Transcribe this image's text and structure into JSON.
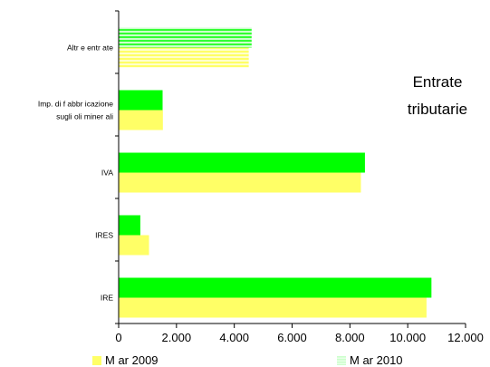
{
  "chart_data": {
    "type": "bar",
    "orientation": "horizontal",
    "title_lines": [
      "Entrate",
      "tributarie"
    ],
    "categories": [
      "Altre entrate",
      "Imp. di fabbricazione sugli oli minerali",
      "IVA",
      "IRES",
      "IRE"
    ],
    "category_label_lines": [
      [
        "Altr e entr ate"
      ],
      [
        "Imp. di f abbr icazione",
        "sugli oli miner ali"
      ],
      [
        "IVA"
      ],
      [
        "IRES"
      ],
      [
        "IRE"
      ]
    ],
    "series": [
      {
        "name": "Mar 2010",
        "label": "M ar 2010",
        "values": [
          4600,
          1520,
          8520,
          750,
          10820
        ]
      },
      {
        "name": "Mar 2009",
        "label": "M ar 2009",
        "values": [
          4500,
          1530,
          8380,
          1050,
          10650
        ]
      }
    ],
    "xlim": [
      0,
      12000
    ],
    "xticks": [
      0,
      2000,
      4000,
      6000,
      8000,
      10000,
      12000
    ],
    "xtick_labels": [
      "0",
      "2.000",
      "4.000",
      "6.000",
      "8.000",
      "10.000",
      "12.000"
    ],
    "legend_placement": "bottom",
    "grid": false,
    "colors": {
      "Mar 2010": "#00ff00",
      "Mar 2009": "#ffff66",
      "altre_2010_a": "#33ff33",
      "altre_2010_b": "#ccffcc",
      "altre_2009_a": "#ffff66",
      "altre_2009_b": "#ffffcc",
      "legend_2009": "#ffff66",
      "legend_2010": "#ccffcc"
    }
  }
}
